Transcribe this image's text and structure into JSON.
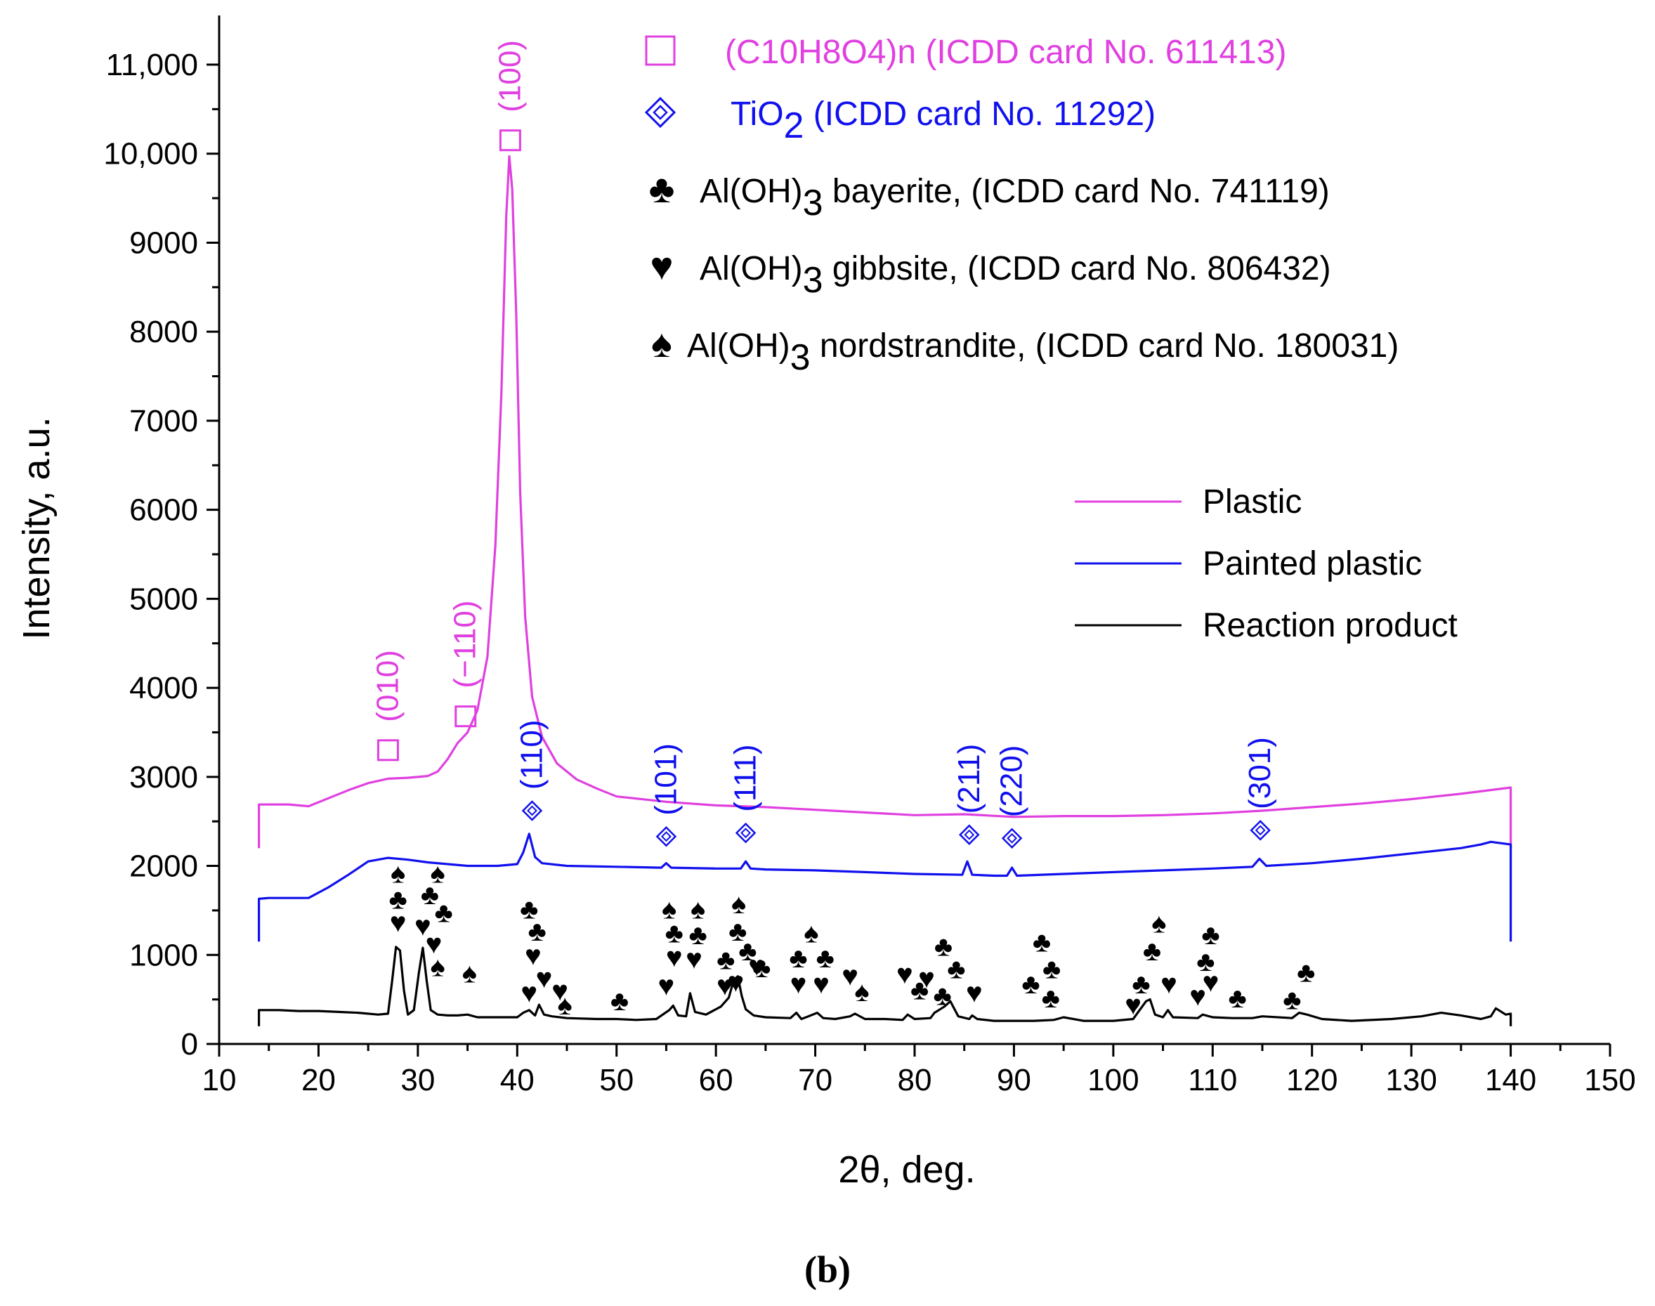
{
  "chart_data": {
    "type": "line",
    "xlabel": "2θ, deg.",
    "ylabel": "Intensity, a.u.",
    "xlim": [
      10,
      150
    ],
    "ylim": [
      0,
      11300
    ],
    "x_ticks": [
      10,
      20,
      30,
      40,
      50,
      60,
      70,
      80,
      90,
      100,
      110,
      120,
      130,
      140,
      150
    ],
    "y_ticks": [
      0,
      1000,
      2000,
      3000,
      4000,
      5000,
      6000,
      7000,
      8000,
      9000,
      10000,
      11000
    ],
    "y_tick_labels": [
      "0",
      "1000",
      "2000",
      "3000",
      "4000",
      "5000",
      "6000",
      "7000",
      "8000",
      "9000",
      "10,000",
      "11,000"
    ],
    "caption": "(b)",
    "legend": {
      "placement": "right",
      "entries": [
        "Plastic",
        "Painted plastic",
        "Reaction product"
      ]
    },
    "series": [
      {
        "name": "Plastic",
        "color": "#e040e0",
        "x": [
          14,
          14,
          15,
          17,
          19,
          21,
          23,
          25,
          27,
          29,
          31,
          32,
          33,
          34,
          35,
          36,
          37,
          37.8,
          38.4,
          38.9,
          39.2,
          39.5,
          39.9,
          40.3,
          40.8,
          41.5,
          42.5,
          44,
          46,
          48,
          50,
          55,
          60,
          65,
          70,
          75,
          80,
          85,
          90,
          95,
          100,
          105,
          110,
          115,
          120,
          125,
          130,
          135,
          140,
          140
        ],
        "y": [
          2200,
          2690,
          2690,
          2690,
          2670,
          2760,
          2850,
          2930,
          2980,
          2990,
          3010,
          3060,
          3200,
          3380,
          3500,
          3750,
          4350,
          5600,
          7300,
          9300,
          9970,
          9600,
          8200,
          6200,
          4800,
          3900,
          3450,
          3150,
          2970,
          2870,
          2780,
          2720,
          2680,
          2660,
          2630,
          2600,
          2570,
          2580,
          2550,
          2560,
          2560,
          2570,
          2590,
          2620,
          2660,
          2700,
          2750,
          2810,
          2880,
          2200
        ]
      },
      {
        "name": "Painted plastic",
        "color": "#1010ee",
        "x": [
          14,
          14,
          15,
          17,
          19,
          21,
          23,
          25,
          27,
          29,
          31,
          33,
          35,
          38,
          40,
          40.6,
          41.2,
          41.8,
          42.5,
          45,
          50,
          54.5,
          55,
          55.5,
          60,
          62.5,
          63,
          63.5,
          65,
          70,
          75,
          80,
          84.8,
          85.3,
          85.8,
          88,
          89.3,
          89.8,
          90.3,
          95,
          100,
          105,
          110,
          114,
          114.7,
          115.4,
          120,
          125,
          130,
          135,
          137,
          138,
          140,
          140
        ],
        "y": [
          1150,
          1630,
          1640,
          1640,
          1640,
          1760,
          1900,
          2050,
          2090,
          2070,
          2040,
          2020,
          2000,
          2000,
          2020,
          2150,
          2360,
          2100,
          2030,
          2000,
          1990,
          1980,
          2030,
          1980,
          1970,
          1970,
          2050,
          1970,
          1960,
          1950,
          1930,
          1910,
          1900,
          2050,
          1900,
          1890,
          1890,
          1980,
          1890,
          1910,
          1930,
          1950,
          1970,
          1990,
          2080,
          2000,
          2030,
          2080,
          2140,
          2200,
          2240,
          2270,
          2240,
          1150
        ]
      },
      {
        "name": "Reaction product",
        "color": "#000000",
        "x": [
          14,
          14,
          16,
          18,
          20,
          22,
          24,
          26,
          27,
          27.4,
          27.8,
          28.2,
          28.6,
          29,
          29.6,
          30.1,
          30.5,
          30.9,
          31.3,
          32,
          33,
          34,
          35,
          36,
          38,
          40,
          40.6,
          41.2,
          41.8,
          42.2,
          42.7,
          43.5,
          45,
          48,
          50,
          52,
          54,
          55.3,
          55.7,
          56.2,
          57,
          57.4,
          57.9,
          59,
          60.5,
          61.3,
          61.8,
          62.2,
          62.6,
          63,
          63.8,
          65,
          67.5,
          68.1,
          68.6,
          69.3,
          70.2,
          70.8,
          72,
          73.5,
          74,
          75,
          77,
          78.8,
          79.3,
          80,
          81.6,
          82,
          83,
          83.6,
          84.4,
          85.5,
          85.8,
          86.3,
          88,
          90,
          92,
          94,
          95,
          97,
          100,
          102,
          103.3,
          103.7,
          104.2,
          105,
          105.5,
          106,
          108.5,
          109,
          110,
          112,
          114,
          115,
          118,
          118.7,
          119.5,
          121,
          124,
          128,
          131,
          133,
          135,
          137,
          138,
          138.5,
          139.5,
          140,
          140
        ],
        "y": [
          200,
          380,
          380,
          370,
          370,
          360,
          350,
          330,
          340,
          700,
          1090,
          1050,
          600,
          330,
          380,
          800,
          1080,
          700,
          380,
          330,
          320,
          320,
          330,
          300,
          300,
          300,
          350,
          380,
          320,
          440,
          330,
          310,
          290,
          280,
          280,
          270,
          280,
          380,
          430,
          320,
          310,
          570,
          360,
          330,
          420,
          520,
          720,
          760,
          540,
          390,
          320,
          300,
          290,
          350,
          280,
          310,
          350,
          290,
          280,
          310,
          340,
          280,
          280,
          270,
          330,
          280,
          290,
          350,
          420,
          480,
          310,
          280,
          320,
          280,
          260,
          260,
          260,
          270,
          300,
          260,
          260,
          280,
          480,
          500,
          330,
          300,
          380,
          300,
          290,
          330,
          300,
          290,
          290,
          310,
          290,
          350,
          330,
          280,
          260,
          280,
          310,
          350,
          320,
          280,
          310,
          400,
          330,
          340,
          200
        ]
      }
    ],
    "phase_legend": [
      {
        "symbol": "□",
        "text": "(C10H8O4)n (ICDD card No. 611413)",
        "color": "#e040e0"
      },
      {
        "symbol": "◈",
        "text_before": "TiO",
        "sub": "2",
        "text_after": " (ICDD card No. 11292)",
        "color": "#1010ee"
      },
      {
        "symbol": "♣",
        "text_before": "Al(OH)",
        "sub": "3",
        "text_after": " bayerite, (ICDD card No. 741119)",
        "color": "#000000"
      },
      {
        "symbol": "♥",
        "text_before": "Al(OH)",
        "sub": "3",
        "text_after": " gibbsite, (ICDD card No. 806432)",
        "color": "#000000"
      },
      {
        "symbol": "♠",
        "text_before": "Al(OH)",
        "sub": "3",
        "text_after": " nordstrandite, (ICDD card No. 180031)",
        "color": "#000000"
      }
    ],
    "annotations": {
      "plastic_peaks": [
        {
          "label": "(010)",
          "x": 27.0,
          "marker_y": 3300
        },
        {
          "label": "(−110)",
          "x": 34.8,
          "marker_y": 3680
        },
        {
          "label": "(100)",
          "x": 39.3,
          "marker_y": 10150
        }
      ],
      "tio2_peaks": [
        {
          "label": "(110)",
          "x": 41.5,
          "marker_y": 2620
        },
        {
          "label": "(101)",
          "x": 55.0,
          "marker_y": 2330
        },
        {
          "label": "(111)",
          "x": 63.0,
          "marker_y": 2370
        },
        {
          "label": "(211)",
          "x": 85.5,
          "marker_y": 2350
        },
        {
          "label": "(220)",
          "x": 89.8,
          "marker_y": 2310
        },
        {
          "label": "(301)",
          "x": 114.8,
          "marker_y": 2400
        }
      ],
      "al_symbols": [
        {
          "s": "♠",
          "x": 28.0,
          "y": 1920
        },
        {
          "s": "♣",
          "x": 28.0,
          "y": 1630
        },
        {
          "s": "♥",
          "x": 28.0,
          "y": 1370
        },
        {
          "s": "♠",
          "x": 32.0,
          "y": 1920
        },
        {
          "s": "♣",
          "x": 31.2,
          "y": 1680
        },
        {
          "s": "♣",
          "x": 32.6,
          "y": 1480
        },
        {
          "s": "♥",
          "x": 30.5,
          "y": 1330
        },
        {
          "s": "♥",
          "x": 31.6,
          "y": 1130
        },
        {
          "s": "♠",
          "x": 32.0,
          "y": 870
        },
        {
          "s": "♠",
          "x": 35.2,
          "y": 800
        },
        {
          "s": "♣",
          "x": 41.2,
          "y": 1520
        },
        {
          "s": "♣",
          "x": 42.0,
          "y": 1270
        },
        {
          "s": "♥",
          "x": 41.6,
          "y": 1000
        },
        {
          "s": "♥",
          "x": 42.7,
          "y": 740
        },
        {
          "s": "♥",
          "x": 41.2,
          "y": 580
        },
        {
          "s": "♥",
          "x": 44.3,
          "y": 600
        },
        {
          "s": "♠",
          "x": 44.8,
          "y": 440
        },
        {
          "s": "♣",
          "x": 50.3,
          "y": 490
        },
        {
          "s": "♠",
          "x": 55.3,
          "y": 1520
        },
        {
          "s": "♣",
          "x": 55.8,
          "y": 1250
        },
        {
          "s": "♥",
          "x": 55.8,
          "y": 980
        },
        {
          "s": "♥",
          "x": 55.0,
          "y": 660
        },
        {
          "s": "♠",
          "x": 58.2,
          "y": 1520
        },
        {
          "s": "♣",
          "x": 58.2,
          "y": 1230
        },
        {
          "s": "♥",
          "x": 57.8,
          "y": 960
        },
        {
          "s": "♠",
          "x": 62.3,
          "y": 1580
        },
        {
          "s": "♣",
          "x": 62.2,
          "y": 1270
        },
        {
          "s": "♣",
          "x": 63.2,
          "y": 1050
        },
        {
          "s": "♣",
          "x": 61.0,
          "y": 950
        },
        {
          "s": "♣",
          "x": 64.6,
          "y": 860
        },
        {
          "s": "♥",
          "x": 64.1,
          "y": 880
        },
        {
          "s": "♥",
          "x": 60.9,
          "y": 660
        },
        {
          "s": "♥",
          "x": 62.0,
          "y": 700
        },
        {
          "s": "♠",
          "x": 69.6,
          "y": 1250
        },
        {
          "s": "♣",
          "x": 68.3,
          "y": 970
        },
        {
          "s": "♣",
          "x": 71.0,
          "y": 970
        },
        {
          "s": "♥",
          "x": 68.3,
          "y": 680
        },
        {
          "s": "♥",
          "x": 70.6,
          "y": 680
        },
        {
          "s": "♥",
          "x": 73.5,
          "y": 770
        },
        {
          "s": "♠",
          "x": 74.7,
          "y": 590
        },
        {
          "s": "♥",
          "x": 79.0,
          "y": 790
        },
        {
          "s": "♥",
          "x": 81.2,
          "y": 740
        },
        {
          "s": "♣",
          "x": 80.5,
          "y": 610
        },
        {
          "s": "♣",
          "x": 82.9,
          "y": 1100
        },
        {
          "s": "♣",
          "x": 84.2,
          "y": 850
        },
        {
          "s": "♣",
          "x": 82.8,
          "y": 550
        },
        {
          "s": "♥",
          "x": 86.0,
          "y": 580
        },
        {
          "s": "♣",
          "x": 92.8,
          "y": 1150
        },
        {
          "s": "♣",
          "x": 93.8,
          "y": 850
        },
        {
          "s": "♣",
          "x": 91.7,
          "y": 680
        },
        {
          "s": "♣",
          "x": 93.7,
          "y": 520
        },
        {
          "s": "♠",
          "x": 104.6,
          "y": 1360
        },
        {
          "s": "♣",
          "x": 103.9,
          "y": 1050
        },
        {
          "s": "♣",
          "x": 102.8,
          "y": 680
        },
        {
          "s": "♥",
          "x": 102.0,
          "y": 440
        },
        {
          "s": "♥",
          "x": 105.6,
          "y": 680
        },
        {
          "s": "♣",
          "x": 109.8,
          "y": 1230
        },
        {
          "s": "♣",
          "x": 109.3,
          "y": 930
        },
        {
          "s": "♥",
          "x": 109.8,
          "y": 700
        },
        {
          "s": "♥",
          "x": 108.5,
          "y": 540
        },
        {
          "s": "♣",
          "x": 112.5,
          "y": 520
        },
        {
          "s": "♣",
          "x": 119.4,
          "y": 810
        },
        {
          "s": "♣",
          "x": 118.0,
          "y": 500
        }
      ]
    }
  }
}
